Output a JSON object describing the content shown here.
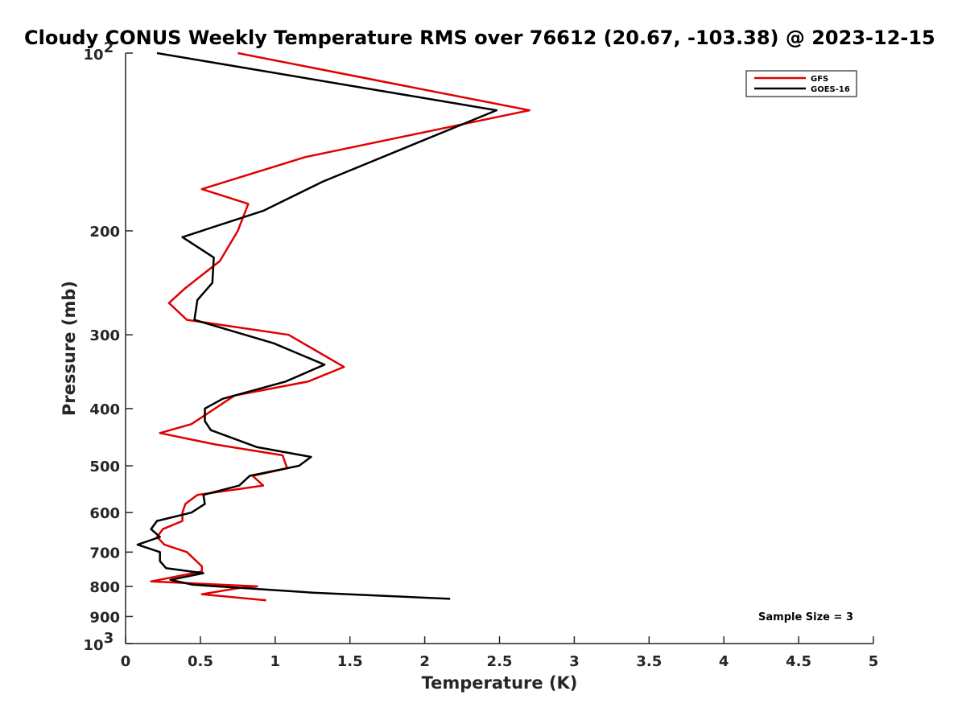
{
  "chart_data": {
    "type": "line",
    "title": "Cloudy CONUS Weekly Temperature RMS over 76612 (20.67, -103.38) @ 2023-12-15",
    "xlabel": "Temperature (K)",
    "ylabel": "Pressure (mb)",
    "xlim": [
      0,
      5
    ],
    "ylim": [
      100,
      1000
    ],
    "yscale": "log",
    "y_reversed": true,
    "x_ticks": [
      0,
      0.5,
      1,
      1.5,
      2,
      2.5,
      3,
      3.5,
      4,
      4.5,
      5
    ],
    "x_tick_labels": [
      "0",
      "0.5",
      "1",
      "1.5",
      "2",
      "2.5",
      "3",
      "3.5",
      "4",
      "4.5",
      "5"
    ],
    "y_ticks": [
      {
        "value": 100,
        "base": "10",
        "exp": "2"
      },
      {
        "value": 200,
        "label": "200"
      },
      {
        "value": 300,
        "label": "300"
      },
      {
        "value": 400,
        "label": "400"
      },
      {
        "value": 500,
        "label": "500"
      },
      {
        "value": 600,
        "label": "600"
      },
      {
        "value": 700,
        "label": "700"
      },
      {
        "value": 800,
        "label": "800"
      },
      {
        "value": 900,
        "label": "900"
      },
      {
        "value": 1000,
        "base": "10",
        "exp": "3"
      }
    ],
    "legend_position": "top-right",
    "annotation": "Sample Size = 3",
    "series": [
      {
        "name": "GFS",
        "color": "#e00000",
        "points": [
          [
            0.75,
            100
          ],
          [
            2.7,
            125
          ],
          [
            1.2,
            150
          ],
          [
            0.51,
            170
          ],
          [
            0.82,
            180
          ],
          [
            0.75,
            200
          ],
          [
            0.63,
            225
          ],
          [
            0.4,
            250
          ],
          [
            0.29,
            265
          ],
          [
            0.41,
            283
          ],
          [
            1.09,
            300
          ],
          [
            1.46,
            340
          ],
          [
            1.22,
            360
          ],
          [
            0.73,
            380
          ],
          [
            0.44,
            425
          ],
          [
            0.23,
            440
          ],
          [
            0.6,
            460
          ],
          [
            1.05,
            480
          ],
          [
            1.08,
            505
          ],
          [
            0.85,
            520
          ],
          [
            0.92,
            540
          ],
          [
            0.48,
            560
          ],
          [
            0.4,
            580
          ],
          [
            0.38,
            600
          ],
          [
            0.38,
            620
          ],
          [
            0.25,
            640
          ],
          [
            0.21,
            660
          ],
          [
            0.26,
            680
          ],
          [
            0.41,
            700
          ],
          [
            0.51,
            740
          ],
          [
            0.51,
            755
          ],
          [
            0.17,
            785
          ],
          [
            0.88,
            800
          ],
          [
            0.76,
            805
          ],
          [
            0.51,
            825
          ],
          [
            0.94,
            845
          ]
        ]
      },
      {
        "name": "GOES-16",
        "color": "#000000",
        "points": [
          [
            0.21,
            100
          ],
          [
            2.48,
            125
          ],
          [
            1.32,
            165
          ],
          [
            0.92,
            185
          ],
          [
            0.38,
            205
          ],
          [
            0.59,
            222
          ],
          [
            0.58,
            245
          ],
          [
            0.48,
            262
          ],
          [
            0.46,
            283
          ],
          [
            0.99,
            310
          ],
          [
            1.33,
            337
          ],
          [
            1.07,
            360
          ],
          [
            0.65,
            385
          ],
          [
            0.53,
            400
          ],
          [
            0.53,
            420
          ],
          [
            0.57,
            435
          ],
          [
            0.88,
            465
          ],
          [
            1.24,
            483
          ],
          [
            1.16,
            500
          ],
          [
            0.83,
            520
          ],
          [
            0.76,
            540
          ],
          [
            0.52,
            560
          ],
          [
            0.53,
            580
          ],
          [
            0.44,
            600
          ],
          [
            0.21,
            620
          ],
          [
            0.17,
            640
          ],
          [
            0.23,
            660
          ],
          [
            0.08,
            680
          ],
          [
            0.23,
            700
          ],
          [
            0.23,
            725
          ],
          [
            0.27,
            745
          ],
          [
            0.52,
            760
          ],
          [
            0.3,
            780
          ],
          [
            0.45,
            795
          ],
          [
            1.25,
            820
          ],
          [
            2.17,
            840
          ]
        ]
      }
    ]
  }
}
